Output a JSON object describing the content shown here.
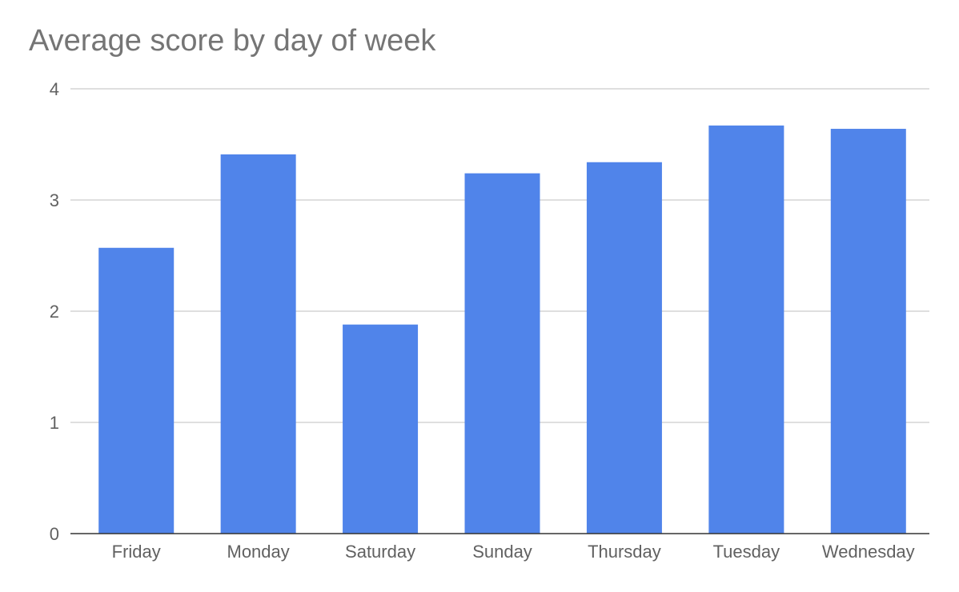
{
  "chart_data": {
    "type": "bar",
    "title": "Average score by day of week",
    "xlabel": "",
    "ylabel": "",
    "categories": [
      "Friday",
      "Monday",
      "Saturday",
      "Sunday",
      "Thursday",
      "Tuesday",
      "Wednesday"
    ],
    "series": [
      {
        "values": [
          2.57,
          3.41,
          1.88,
          3.24,
          3.34,
          3.67,
          3.64
        ],
        "color": "#5084EA"
      }
    ],
    "ylim": [
      0,
      4
    ],
    "yticks": [
      "0",
      "1",
      "2",
      "3",
      "4"
    ],
    "grid": true,
    "legend": "none"
  }
}
